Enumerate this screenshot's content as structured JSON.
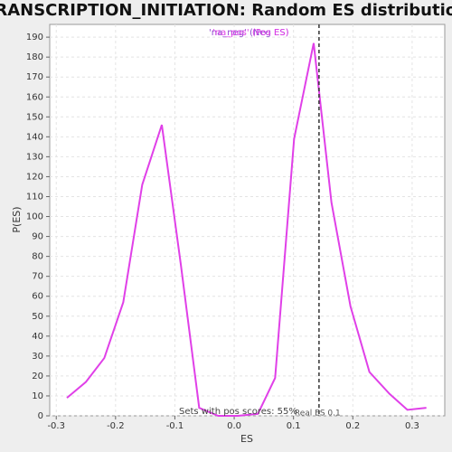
{
  "chart_data": {
    "type": "line",
    "title": "TRANSCRIPTION_INITIATION: Random ES distribution",
    "x_label": "ES",
    "y_label": "P(ES)",
    "x": [
      -0.282,
      -0.25,
      -0.219,
      -0.187,
      -0.155,
      -0.122,
      -0.09,
      -0.059,
      -0.027,
      0.006,
      0.04,
      0.069,
      0.101,
      0.134,
      0.164,
      0.196,
      0.228,
      0.262,
      0.292,
      0.324
    ],
    "series": [
      {
        "name": "'na_pos' (Pos ES)",
        "color": "#e040e8",
        "values": [
          9,
          17,
          29,
          57,
          116,
          146,
          76,
          4,
          0,
          0,
          1,
          19,
          139,
          187,
          107,
          55,
          22,
          11,
          3,
          4
        ]
      }
    ],
    "legend_extra": {
      "name": "'na_neg' (Neg ES)",
      "color": "#9040d0"
    },
    "real_es": 0.143,
    "real_es_label": "Real ES 0.1",
    "pos_scores_label": "Sets with pos scores: 55%",
    "xlim": [
      -0.311,
      0.355
    ],
    "ylim": [
      0,
      196.4
    ],
    "xticks": [
      -0.3,
      -0.2,
      -0.1,
      {
        "value": 0,
        "label": "0.0"
      },
      0.1,
      0.2,
      0.3
    ],
    "yticks": [
      0,
      10,
      20,
      30,
      40,
      50,
      60,
      70,
      80,
      90,
      100,
      110,
      120,
      130,
      140,
      150,
      160,
      170,
      180,
      190
    ],
    "grid": true
  }
}
